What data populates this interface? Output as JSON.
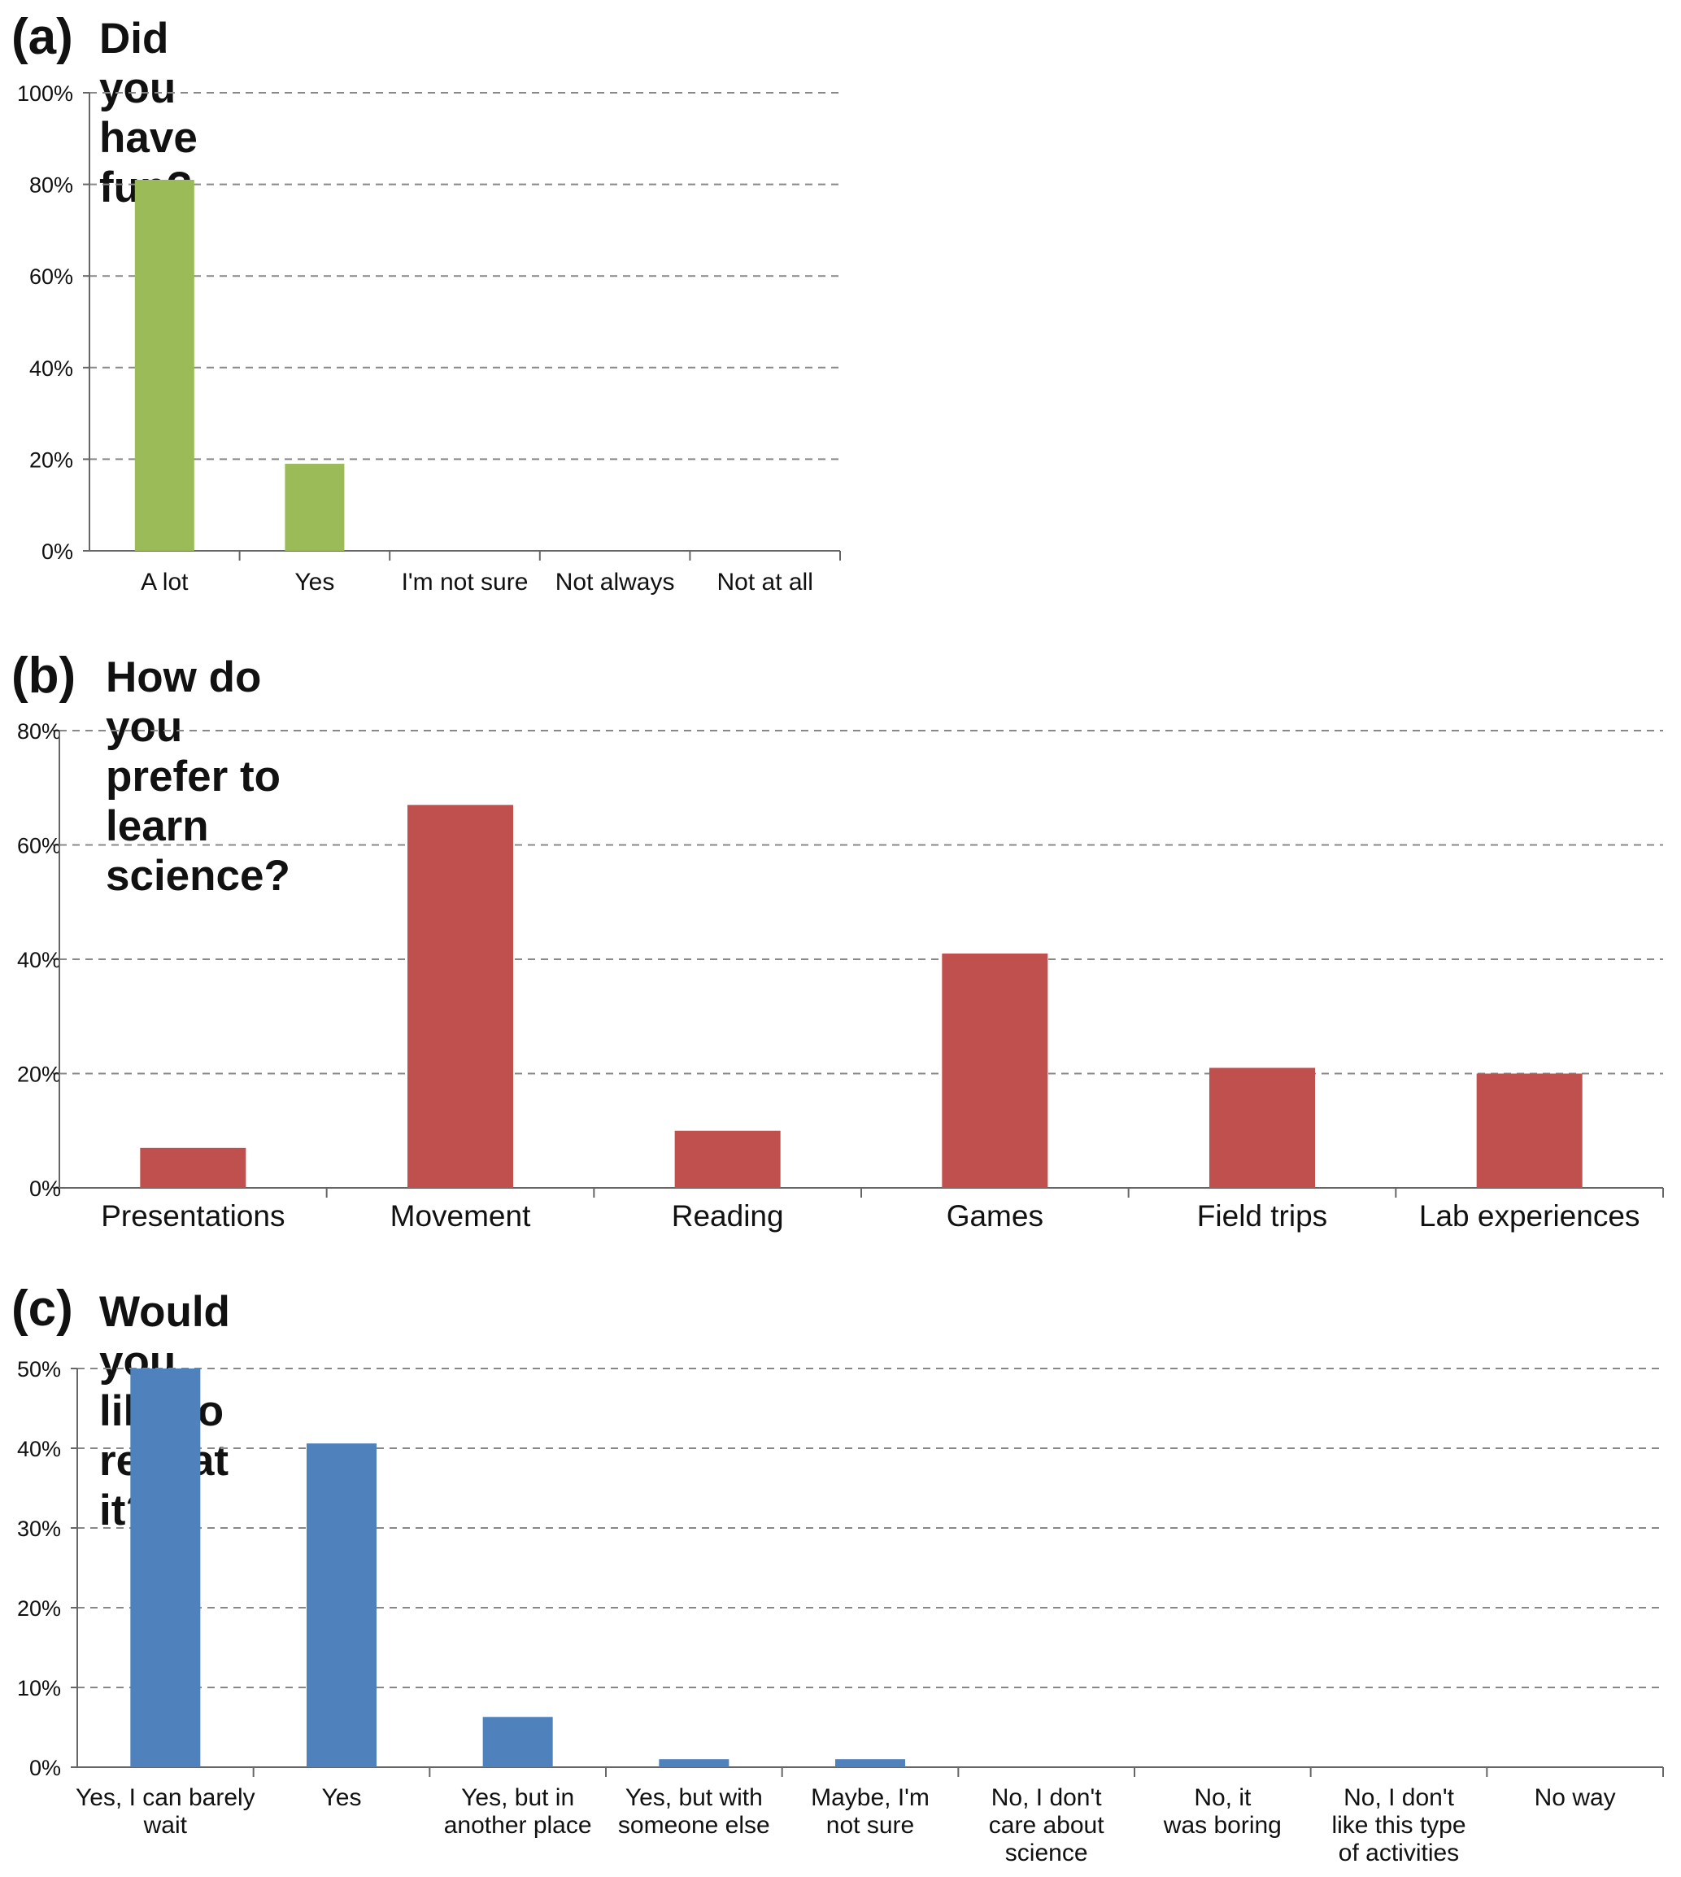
{
  "colors": {
    "panel_a": "#9BBB59",
    "panel_b": "#C0504D",
    "panel_c": "#4F81BD",
    "grid": "#888888",
    "axis": "#666666"
  },
  "chart_data": [
    {
      "id": "a",
      "panel_label": "(a)",
      "title": "Did you have fun?",
      "type": "bar",
      "categories": [
        "A lot",
        "Yes",
        "I'm not sure",
        "Not always",
        "Not at all"
      ],
      "values": [
        81,
        19,
        0,
        0,
        0
      ],
      "ylim": [
        0,
        100
      ],
      "yticks": [
        0,
        20,
        40,
        60,
        80,
        100
      ],
      "ytick_labels": [
        "0%",
        "20%",
        "40%",
        "60%",
        "80%",
        "100%"
      ],
      "xlabel": "",
      "ylabel": "",
      "grid": true,
      "color": "#9BBB59"
    },
    {
      "id": "b",
      "panel_label": "(b)",
      "title": "How do you prefer to learn science?",
      "type": "bar",
      "categories": [
        "Presentations",
        "Movement",
        "Reading",
        "Games",
        "Field trips",
        "Lab experiences"
      ],
      "values": [
        7,
        67,
        10,
        41,
        21,
        20
      ],
      "ylim": [
        0,
        80
      ],
      "yticks": [
        0,
        20,
        40,
        60,
        80
      ],
      "ytick_labels": [
        "0%",
        "20%",
        "40%",
        "60%",
        "80%"
      ],
      "xlabel": "",
      "ylabel": "",
      "grid": true,
      "color": "#C0504D"
    },
    {
      "id": "c",
      "panel_label": "(c)",
      "title": "Would you like to repeat it?",
      "type": "bar",
      "categories": [
        [
          "Yes, I can barely",
          "wait"
        ],
        [
          "Yes"
        ],
        [
          "Yes, but in",
          "another place"
        ],
        [
          "Yes, but with",
          "someone else"
        ],
        [
          "Maybe, I'm",
          "not sure"
        ],
        [
          "No, I don't",
          "care about",
          "science"
        ],
        [
          "No, it",
          "was boring"
        ],
        [
          "No, I don't",
          "like this type",
          "of activities"
        ],
        [
          "No way"
        ]
      ],
      "values": [
        50,
        40.6,
        6.3,
        1,
        1,
        0,
        0,
        0,
        0
      ],
      "ylim": [
        0,
        50
      ],
      "yticks": [
        0,
        10,
        20,
        30,
        40,
        50
      ],
      "ytick_labels": [
        "0%",
        "10%",
        "20%",
        "30%",
        "40%",
        "50%"
      ],
      "xlabel": "",
      "ylabel": "",
      "grid": true,
      "color": "#4F81BD"
    }
  ]
}
